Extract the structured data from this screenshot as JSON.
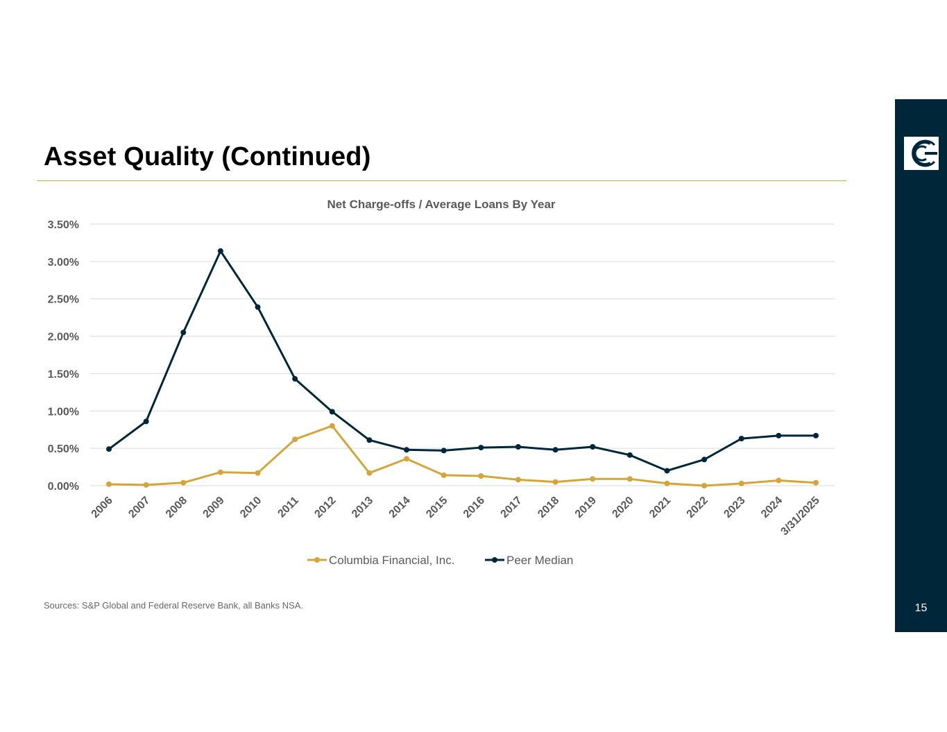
{
  "page": {
    "title": "Asset Quality (Continued)",
    "source_note": "Sources: S&P Global and Federal Reserve Bank, all Banks NSA.",
    "page_number": "15",
    "logo_icon": "columbia-c-logo-icon"
  },
  "colors": {
    "accent": "#d4a639",
    "navy": "#002639",
    "columbia": "#d4a639",
    "peer": "#002639",
    "grid": "#d9d9d9",
    "text": "#595959"
  },
  "chart_data": {
    "type": "line",
    "title": "Net Charge-offs / Average Loans By Year",
    "xlabel": "",
    "ylabel": "",
    "ylim": [
      0,
      3.5
    ],
    "yticks": [
      "0.00%",
      "0.50%",
      "1.00%",
      "1.50%",
      "2.00%",
      "2.50%",
      "3.00%",
      "3.50%"
    ],
    "categories": [
      "2006",
      "2007",
      "2008",
      "2009",
      "2010",
      "2011",
      "2012",
      "2013",
      "2014",
      "2015",
      "2016",
      "2017",
      "2018",
      "2019",
      "2020",
      "2021",
      "2022",
      "2023",
      "2024",
      "3/31/2025"
    ],
    "series": [
      {
        "name": "Columbia Financial, Inc.",
        "color": "#d4a639",
        "values": [
          0.02,
          0.01,
          0.04,
          0.18,
          0.17,
          0.62,
          0.8,
          0.17,
          0.36,
          0.14,
          0.13,
          0.08,
          0.05,
          0.09,
          0.09,
          0.03,
          0.0,
          0.03,
          0.07,
          0.04
        ]
      },
      {
        "name": "Peer Median",
        "color": "#002639",
        "values": [
          0.49,
          0.86,
          2.05,
          3.14,
          2.39,
          1.43,
          0.99,
          0.61,
          0.48,
          0.47,
          0.51,
          0.52,
          0.48,
          0.52,
          0.41,
          0.2,
          0.35,
          0.63,
          0.67,
          0.67
        ]
      }
    ],
    "legend": "bottom-center",
    "grid": true
  }
}
